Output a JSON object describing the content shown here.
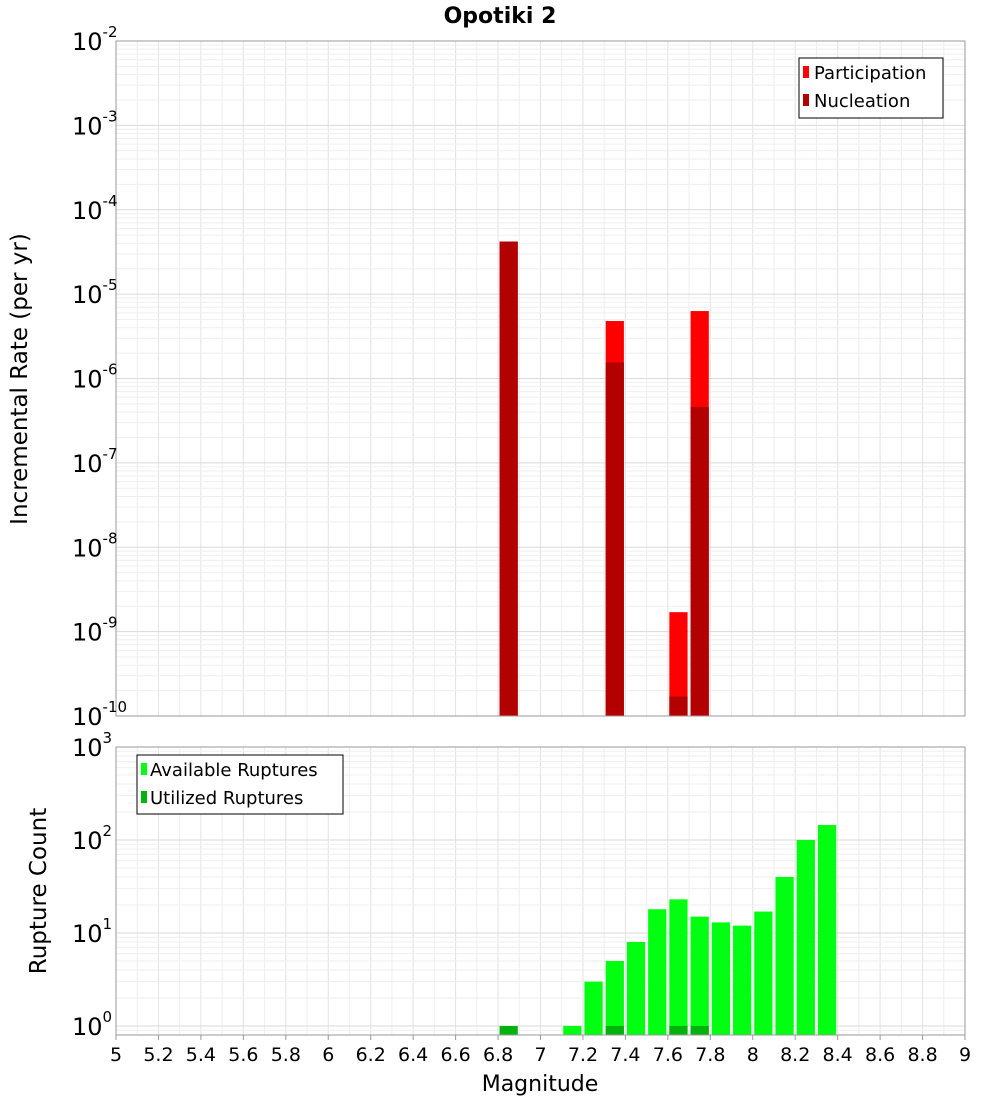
{
  "chart_data": {
    "title": "Opotiki 2",
    "xlabel": "Magnitude",
    "xlim": [
      5,
      9
    ],
    "x_ticks": [
      5,
      5.2,
      5.4,
      5.6,
      5.8,
      6,
      6.2,
      6.4,
      6.6,
      6.8,
      7,
      7.2,
      7.4,
      7.6,
      7.8,
      8,
      8.2,
      8.4,
      8.6,
      8.8,
      9
    ],
    "x_tick_labels": [
      "5",
      "5.2",
      "5.4",
      "5.6",
      "5.8",
      "6",
      "6.2",
      "6.4",
      "6.6",
      "6.8",
      "7",
      "7.2",
      "7.4",
      "7.6",
      "7.8",
      "8",
      "8.2",
      "8.4",
      "8.6",
      "8.8",
      "9"
    ],
    "bin_width": 0.1,
    "panels": [
      {
        "type": "bar",
        "yscale": "log",
        "ylabel": "Incremental Rate (per yr)",
        "ylim": [
          1e-10,
          0.01
        ],
        "y_tick_exponents": [
          -10,
          -9,
          -8,
          -7,
          -6,
          -5,
          -4,
          -3,
          -2
        ],
        "grid": true,
        "legend_position": "top-right",
        "series": [
          {
            "name": "Participation",
            "color": "#ff0000",
            "x": [
              6.85,
              7.35,
              7.65,
              7.75
            ],
            "values": [
              4.2e-05,
              4.8e-06,
              1.7e-09,
              6.3e-06
            ]
          },
          {
            "name": "Nucleation",
            "color": "#b30000",
            "x": [
              6.85,
              7.35,
              7.65,
              7.75
            ],
            "values": [
              4.2e-05,
              1.55e-06,
              1.7e-10,
              4.6e-07
            ]
          }
        ]
      },
      {
        "type": "bar",
        "yscale": "log",
        "ylabel": "Rupture Count",
        "ylim": [
          0.8,
          1000
        ],
        "y_tick_exponents": [
          0,
          1,
          2,
          3
        ],
        "grid": true,
        "legend_position": "top-left",
        "series": [
          {
            "name": "Available Ruptures",
            "color": "#00ff11",
            "x": [
              7.15,
              7.25,
              7.35,
              7.45,
              7.55,
              7.65,
              7.75,
              7.85,
              7.95,
              8.05,
              8.15,
              8.25,
              8.35
            ],
            "values": [
              1,
              3,
              5,
              8,
              18,
              23,
              15,
              13,
              12,
              17,
              40,
              100,
              145
            ]
          },
          {
            "name": "Utilized Ruptures",
            "color": "#00b30c",
            "x": [
              6.85,
              7.35,
              7.65,
              7.75
            ],
            "values": [
              1,
              1,
              1,
              1
            ]
          }
        ]
      }
    ]
  }
}
